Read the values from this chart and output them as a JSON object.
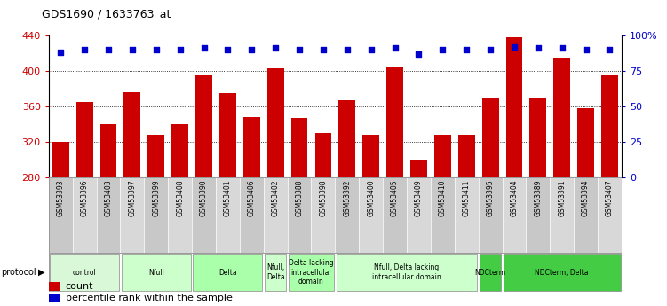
{
  "title": "GDS1690 / 1633763_at",
  "samples": [
    "GSM53393",
    "GSM53396",
    "GSM53403",
    "GSM53397",
    "GSM53399",
    "GSM53408",
    "GSM53390",
    "GSM53401",
    "GSM53406",
    "GSM53402",
    "GSM53388",
    "GSM53398",
    "GSM53392",
    "GSM53400",
    "GSM53405",
    "GSM53409",
    "GSM53410",
    "GSM53411",
    "GSM53395",
    "GSM53404",
    "GSM53389",
    "GSM53391",
    "GSM53394",
    "GSM53407"
  ],
  "counts": [
    320,
    365,
    340,
    376,
    328,
    340,
    395,
    375,
    348,
    403,
    347,
    330,
    367,
    328,
    405,
    300,
    328,
    328,
    370,
    438,
    370,
    415,
    358,
    395
  ],
  "percentile": [
    88,
    90,
    90,
    90,
    90,
    90,
    91,
    90,
    90,
    91,
    90,
    90,
    90,
    90,
    91,
    87,
    90,
    90,
    90,
    92,
    91,
    91,
    90,
    90
  ],
  "ylim_left": [
    280,
    440
  ],
  "ylim_right": [
    0,
    100
  ],
  "yticks_left": [
    280,
    320,
    360,
    400,
    440
  ],
  "yticks_right": [
    0,
    25,
    50,
    75,
    100
  ],
  "ytick_labels_right": [
    "0",
    "25",
    "50",
    "75",
    "100%"
  ],
  "bar_color": "#cc0000",
  "dot_color": "#0000cc",
  "grid_yticks": [
    320,
    360,
    400
  ],
  "protocols": [
    {
      "label": "control",
      "start": 0,
      "end": 2,
      "color": "#d8f8d8"
    },
    {
      "label": "Nfull",
      "start": 3,
      "end": 5,
      "color": "#ccffcc"
    },
    {
      "label": "Delta",
      "start": 6,
      "end": 8,
      "color": "#aaffaa"
    },
    {
      "label": "Nfull,\nDelta",
      "start": 9,
      "end": 9,
      "color": "#ccffcc"
    },
    {
      "label": "Delta lacking\nintracellular\ndomain",
      "start": 10,
      "end": 11,
      "color": "#aaffaa"
    },
    {
      "label": "Nfull, Delta lacking\nintracellular domain",
      "start": 12,
      "end": 17,
      "color": "#ccffcc"
    },
    {
      "label": "NDCterm",
      "start": 18,
      "end": 18,
      "color": "#44cc44"
    },
    {
      "label": "NDCterm, Delta",
      "start": 19,
      "end": 23,
      "color": "#44cc44"
    }
  ],
  "legend_red": "count",
  "legend_blue": "percentile rank within the sample",
  "bar_width": 0.7,
  "n_samples": 24,
  "sample_box_colors": [
    "#c8c8c8",
    "#d8d8d8"
  ]
}
